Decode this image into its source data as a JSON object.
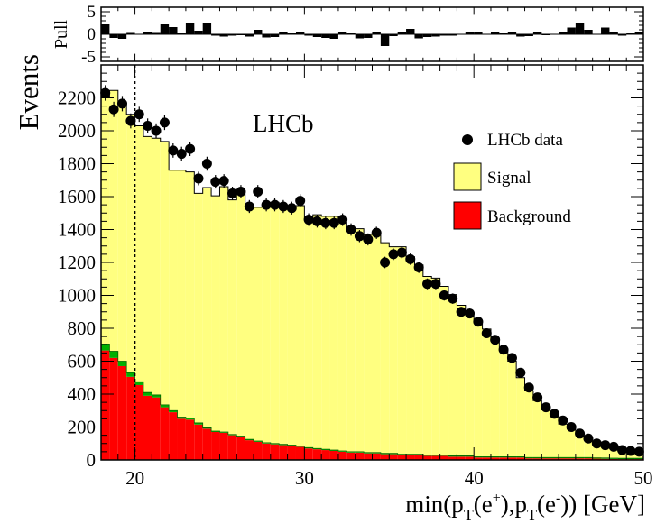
{
  "chart_data": {
    "type": "bar",
    "experiment_label": "LHCb",
    "xlabel_parts": {
      "pre": "min(p",
      "sub1": "T",
      "mid1": "(e",
      "sup1": "+",
      "mid2": "),p",
      "sub2": "T",
      "mid3": "(e",
      "sup2": "-",
      "post": ")) [GeV]"
    },
    "ylabel": "Events",
    "pull_ylabel": "Pull",
    "xlim": [
      18,
      50
    ],
    "ylim": [
      0,
      2400
    ],
    "pull_ylim": [
      -6,
      6
    ],
    "x_ticks": [
      20,
      30,
      40,
      50
    ],
    "y_ticks": [
      0,
      200,
      400,
      600,
      800,
      1000,
      1200,
      1400,
      1600,
      1800,
      2000,
      2200
    ],
    "pull_ticks": [
      -5,
      0,
      5
    ],
    "cut_line_x": 20,
    "bin_edges_start": 18,
    "bin_width": 0.5,
    "series": [
      {
        "name": "LHCb data",
        "kind": "points",
        "values": [
          2230,
          2130,
          2165,
          2060,
          2100,
          2030,
          2000,
          2050,
          1880,
          1860,
          1890,
          1710,
          1800,
          1690,
          1695,
          1620,
          1630,
          1540,
          1630,
          1550,
          1550,
          1540,
          1530,
          1575,
          1460,
          1450,
          1440,
          1440,
          1460,
          1400,
          1360,
          1340,
          1380,
          1200,
          1250,
          1260,
          1220,
          1170,
          1070,
          1070,
          1000,
          980,
          900,
          890,
          840,
          770,
          730,
          670,
          620,
          530,
          440,
          380,
          320,
          280,
          240,
          200,
          160,
          130,
          100,
          90,
          80,
          60,
          55,
          50,
          45
        ]
      },
      {
        "name": "Signal",
        "kind": "stacked-hist",
        "values": [
          1505,
          1585,
          1570,
          1570,
          1555,
          1555,
          1560,
          1600,
          1460,
          1500,
          1495,
          1395,
          1460,
          1430,
          1490,
          1425,
          1490,
          1405,
          1420,
          1450,
          1465,
          1450,
          1445,
          1460,
          1390,
          1420,
          1415,
          1420,
          1390,
          1350,
          1355,
          1325,
          1335,
          1280,
          1255,
          1260,
          1200,
          1150,
          1085,
          1075,
          1025,
          980,
          915,
          870,
          825,
          775,
          720,
          655,
          580,
          480,
          405,
          345,
          290,
          248,
          203,
          173,
          143,
          113,
          92,
          78,
          64,
          53,
          48,
          43,
          38
        ]
      },
      {
        "name": "Background",
        "kind": "stacked-hist",
        "values": [
          665,
          620,
          570,
          505,
          455,
          390,
          380,
          320,
          290,
          250,
          245,
          215,
          190,
          170,
          165,
          150,
          140,
          120,
          110,
          100,
          95,
          90,
          85,
          80,
          70,
          65,
          60,
          55,
          50,
          45,
          45,
          40,
          40,
          35,
          35,
          30,
          30,
          30,
          25,
          25,
          25,
          20,
          20,
          20,
          15,
          15,
          15,
          15,
          15,
          15,
          10,
          10,
          10,
          10,
          10,
          10,
          10,
          10,
          8,
          7,
          6,
          5,
          5,
          5,
          5
        ]
      },
      {
        "name": "Background (green component)",
        "kind": "stacked-hist",
        "values": [
          40,
          40,
          30,
          25,
          20,
          20,
          15,
          15,
          10,
          10,
          10,
          10,
          5,
          5,
          5,
          5,
          5,
          5,
          5,
          5,
          5,
          5,
          5,
          5,
          5,
          5,
          5,
          5,
          5,
          5,
          5,
          5,
          5,
          5,
          5,
          5,
          5,
          5,
          5,
          5,
          5,
          5,
          5,
          5,
          5,
          5,
          5,
          5,
          5,
          5,
          5,
          5,
          5,
          5,
          5,
          5,
          5,
          5,
          5,
          5,
          5,
          5,
          5,
          5,
          5
        ]
      }
    ],
    "pull": [
      2.2,
      -0.8,
      -1.0,
      0.3,
      0.1,
      0.4,
      0.3,
      2.2,
      1.6,
      0.2,
      2.5,
      0.8,
      2.4,
      -0.3,
      -0.5,
      -0.3,
      -0.2,
      -0.5,
      1.0,
      -0.7,
      -0.6,
      0.4,
      0.2,
      0.4,
      -0.3,
      -0.6,
      -0.8,
      -1.0,
      0.5,
      0.2,
      -0.9,
      -0.8,
      0.4,
      -2.6,
      -0.4,
      0.6,
      1.2,
      -0.9,
      -0.6,
      -0.5,
      -0.3,
      -0.3,
      -0.1,
      0.5,
      0.6,
      0.1,
      0.4,
      0.2,
      0.6,
      -0.5,
      -0.4,
      0.6,
      -0.2,
      0.0,
      0.5,
      1.5,
      2.6,
      1.0,
      0.0,
      1.5,
      0.5,
      -0.3,
      0.2,
      0.6,
      0.2
    ],
    "legend": {
      "placement": "top-right",
      "entries": [
        {
          "label": "LHCb data",
          "marker": "point"
        },
        {
          "label": "Signal",
          "marker": "box"
        },
        {
          "label": "Background",
          "marker": "box"
        }
      ]
    },
    "colors": {
      "signal": "#ffff80",
      "background": "#ff0000",
      "background_green": "#00b000",
      "data": "#000000",
      "pull": "#000000"
    }
  }
}
